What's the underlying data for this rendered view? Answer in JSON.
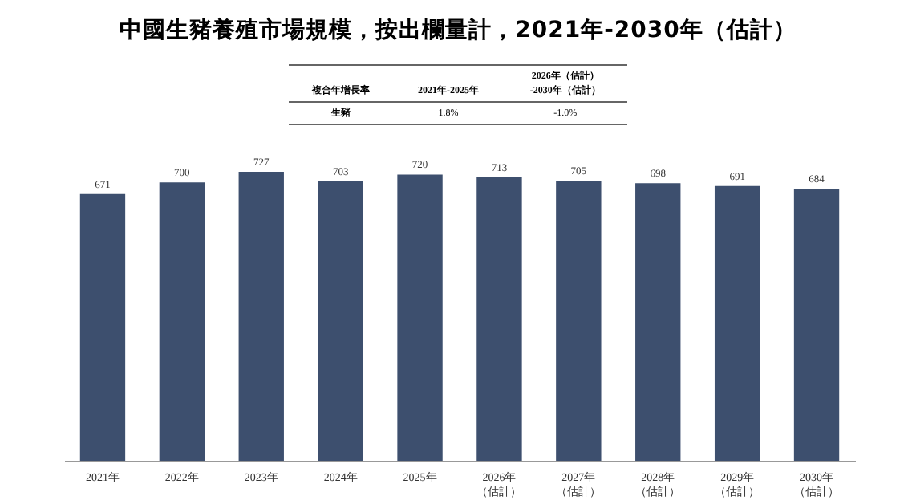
{
  "chart_data": {
    "type": "bar",
    "title": "中國生豬養殖市場規模，按出欄量計，2021年-2030年（估計）",
    "categories": [
      "2021年",
      "2022年",
      "2023年",
      "2024年",
      "2025年",
      "2026年（估計）",
      "2027年（估計）",
      "2028年（估計）",
      "2029年（估計）",
      "2030年（估計）"
    ],
    "values": [
      671,
      700,
      727,
      703,
      720,
      713,
      705,
      698,
      691,
      684
    ],
    "color": "#3d4f6e",
    "data_labels": true,
    "annotations": [
      "複合年增長率",
      "2021年-2025年",
      "2026年（估計）-2030年（估計）",
      "生豬",
      "1.8%",
      "-1.0%"
    ]
  }
}
